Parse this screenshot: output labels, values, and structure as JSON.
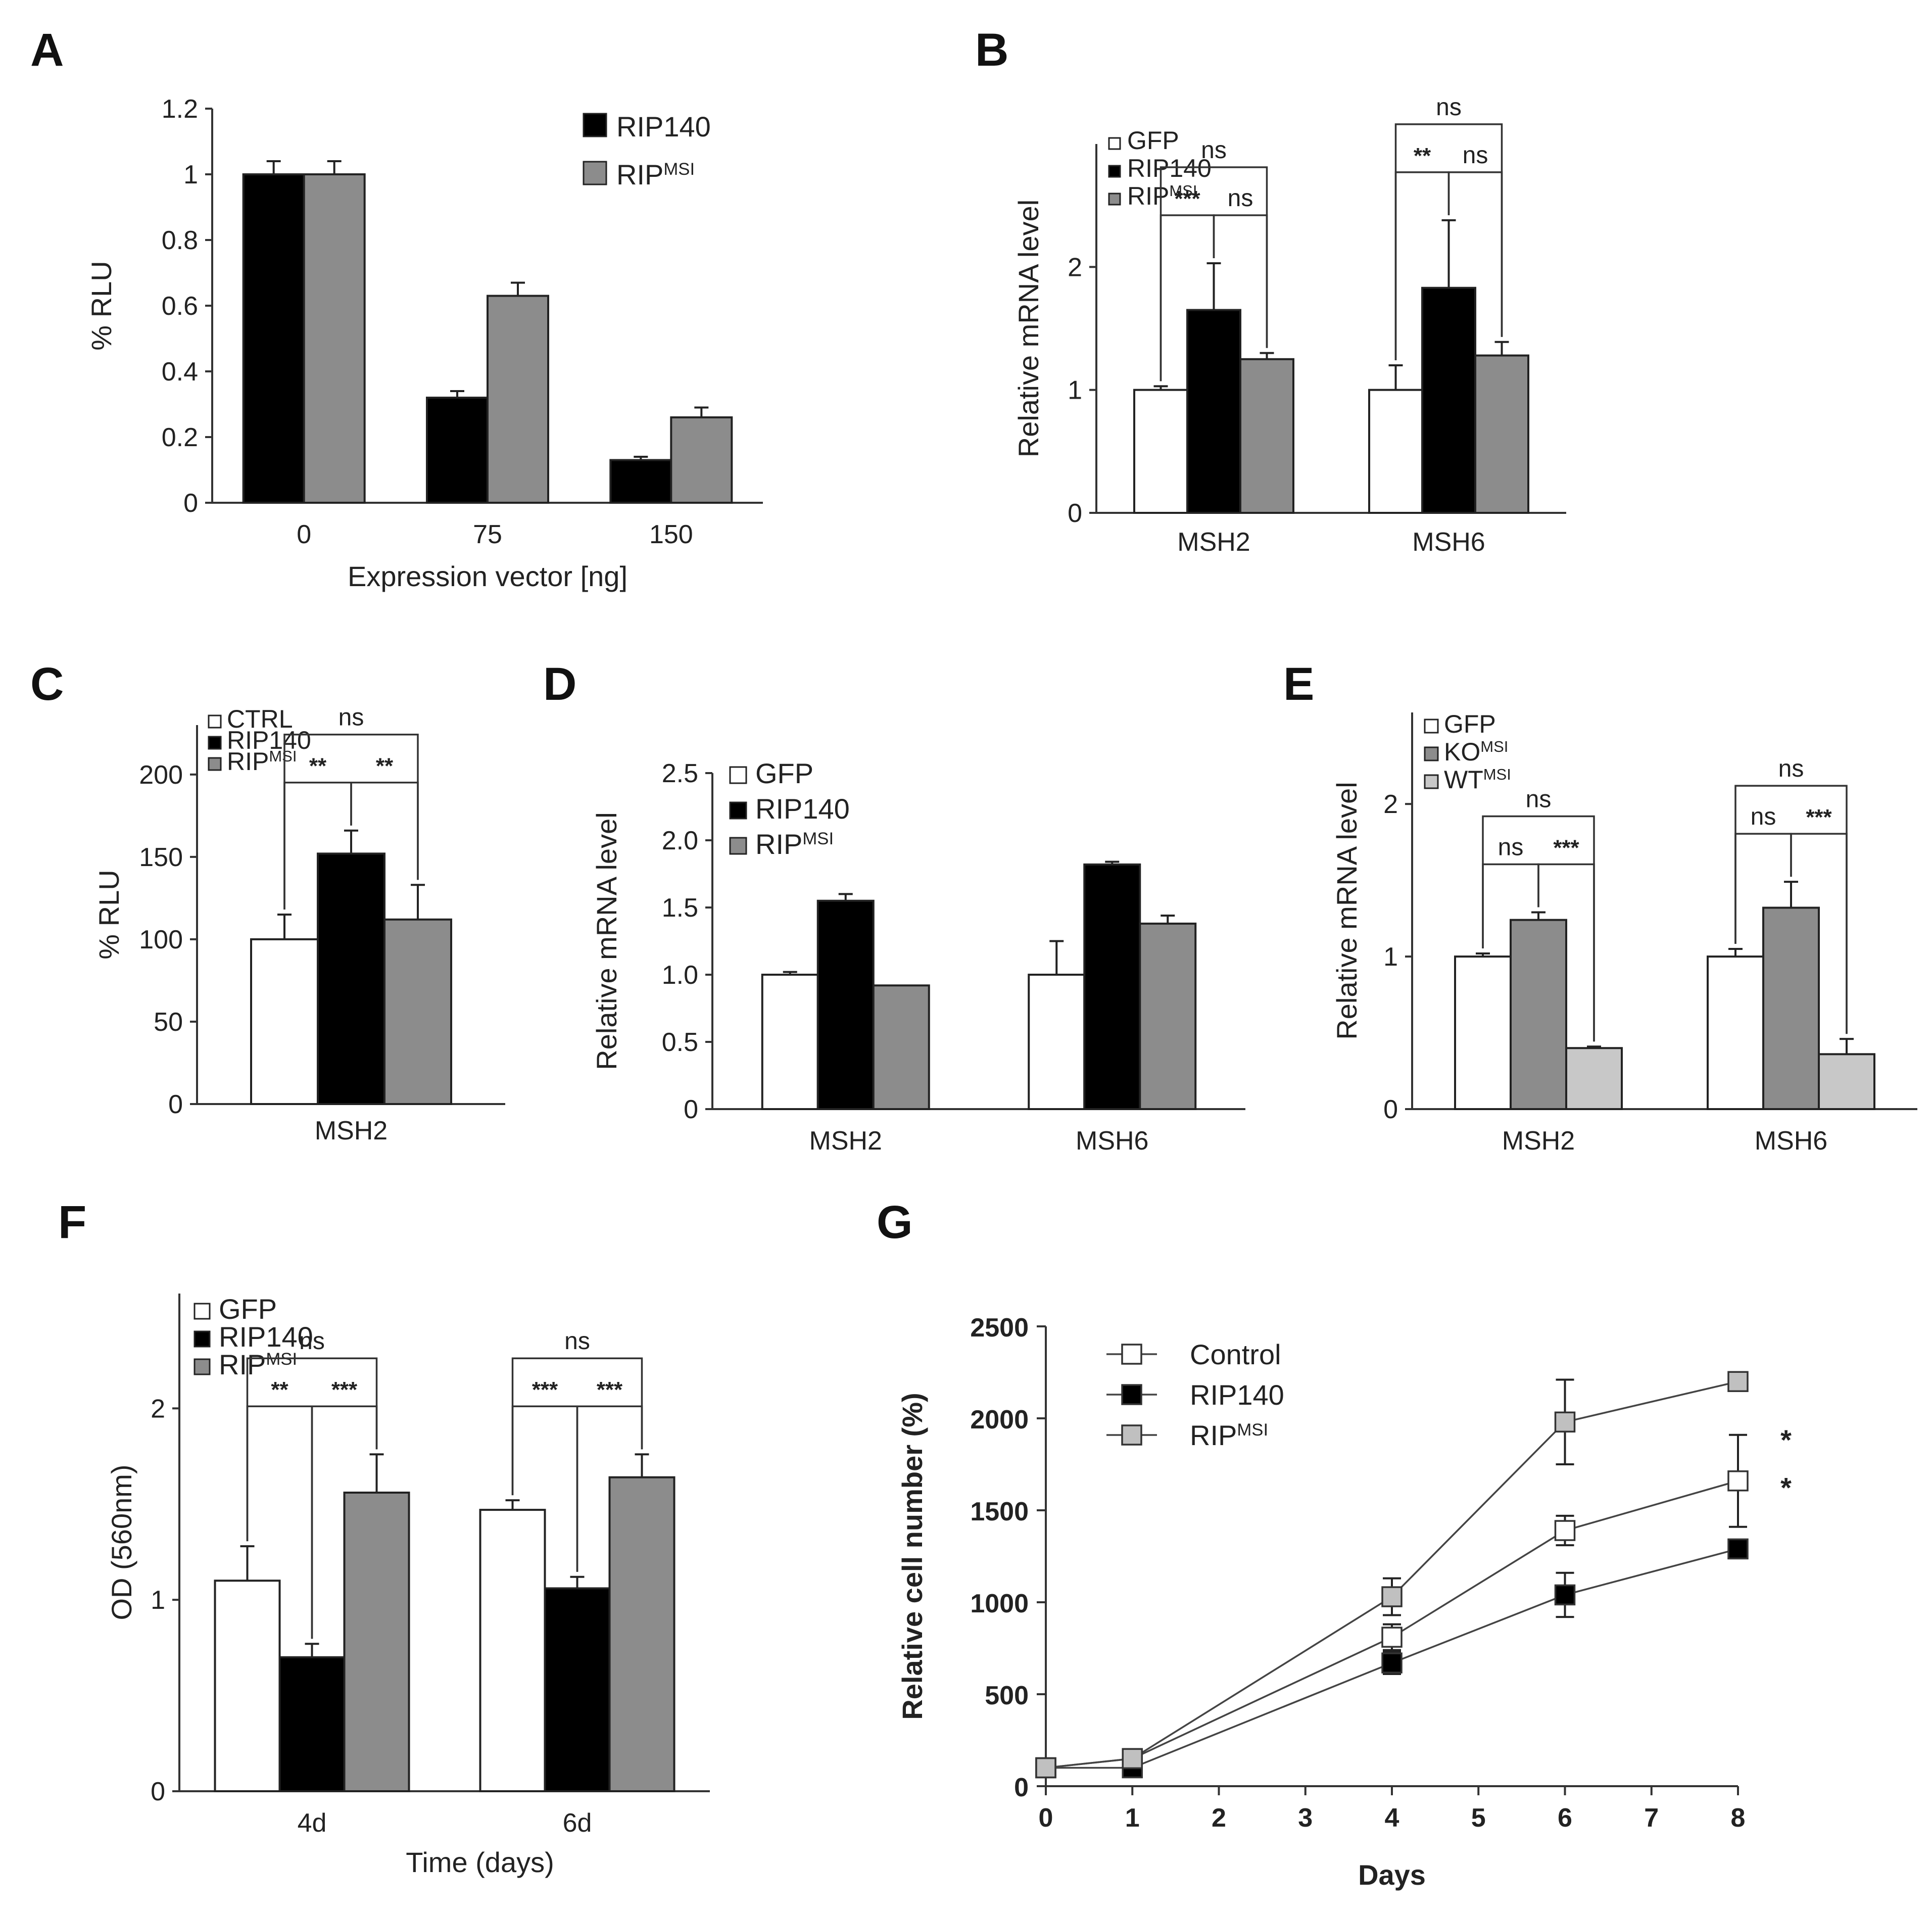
{
  "chart_data": [
    {
      "panel": "A",
      "type": "bar",
      "xlabel": "Expression vector  [ng]",
      "ylabel": "% RLU",
      "ylim": [
        0,
        1.2
      ],
      "yticks": [
        0,
        0.2,
        0.4,
        0.6,
        0.8,
        1,
        1.2
      ],
      "categories": [
        "0",
        "75",
        "150"
      ],
      "series": [
        {
          "name": "RIP140",
          "sup": "",
          "color": "#000000",
          "values": [
            1.0,
            0.32,
            0.13
          ],
          "errors": [
            0.04,
            0.02,
            0.01
          ]
        },
        {
          "name": "RIP",
          "sup": "MSI",
          "color": "#8c8c8c",
          "values": [
            1.0,
            0.63,
            0.26
          ],
          "errors": [
            0.04,
            0.04,
            0.03
          ]
        }
      ],
      "significance": []
    },
    {
      "panel": "B",
      "type": "bar",
      "xlabel": "",
      "ylabel": "Relative mRNA level",
      "ylim": [
        0,
        3.0
      ],
      "yticks": [
        0,
        1,
        2
      ],
      "categories": [
        "MSH2",
        "MSH6"
      ],
      "series": [
        {
          "name": "GFP",
          "sup": "",
          "color": "#ffffff",
          "values": [
            1.0,
            1.0
          ],
          "errors": [
            0.03,
            0.2
          ]
        },
        {
          "name": "RIP140",
          "sup": "",
          "color": "#000000",
          "values": [
            1.65,
            1.83
          ],
          "errors": [
            0.38,
            0.55
          ]
        },
        {
          "name": "RIP",
          "sup": "MSI",
          "color": "#8c8c8c",
          "values": [
            1.25,
            1.28
          ],
          "errors": [
            0.05,
            0.11
          ]
        }
      ],
      "significance": [
        {
          "group": 0,
          "from": 0,
          "to": 1,
          "label": "***"
        },
        {
          "group": 0,
          "from": 1,
          "to": 2,
          "label": "ns"
        },
        {
          "group": 0,
          "from": 0,
          "to": 2,
          "label": "ns"
        },
        {
          "group": 1,
          "from": 0,
          "to": 1,
          "label": "**"
        },
        {
          "group": 1,
          "from": 1,
          "to": 2,
          "label": "ns"
        },
        {
          "group": 1,
          "from": 0,
          "to": 2,
          "label": "ns"
        }
      ]
    },
    {
      "panel": "C",
      "type": "bar",
      "xlabel": "",
      "ylabel": "% RLU",
      "ylim": [
        0,
        230
      ],
      "yticks": [
        0,
        50,
        100,
        150,
        200
      ],
      "categories": [
        "MSH2"
      ],
      "series": [
        {
          "name": "CTRL",
          "sup": "",
          "color": "#ffffff",
          "values": [
            100
          ],
          "errors": [
            15
          ]
        },
        {
          "name": "RIP140",
          "sup": "",
          "color": "#000000",
          "values": [
            152
          ],
          "errors": [
            14
          ]
        },
        {
          "name": "RIP",
          "sup": "MSI",
          "color": "#8c8c8c",
          "values": [
            112
          ],
          "errors": [
            21
          ]
        }
      ],
      "significance": [
        {
          "group": 0,
          "from": 0,
          "to": 1,
          "label": "**"
        },
        {
          "group": 0,
          "from": 1,
          "to": 2,
          "label": "**"
        },
        {
          "group": 0,
          "from": 0,
          "to": 2,
          "label": "ns"
        }
      ]
    },
    {
      "panel": "D",
      "type": "bar",
      "xlabel": "",
      "ylabel": "Relative mRNA level",
      "ylim": [
        0,
        2.5
      ],
      "yticks": [
        "0",
        "0.5",
        "1.0",
        "1.5",
        "2.0",
        "2.5"
      ],
      "categories": [
        "MSH2",
        "MSH6"
      ],
      "series": [
        {
          "name": "GFP",
          "sup": "",
          "color": "#ffffff",
          "values": [
            1.0,
            1.0
          ],
          "errors": [
            0.02,
            0.25
          ]
        },
        {
          "name": "RIP140",
          "sup": "",
          "color": "#000000",
          "values": [
            1.55,
            1.82
          ],
          "errors": [
            0.05,
            0.02
          ]
        },
        {
          "name": "RIP",
          "sup": "MSI",
          "color": "#8c8c8c",
          "values": [
            0.92,
            1.38
          ],
          "errors": [
            0.0,
            0.06
          ]
        }
      ],
      "significance": []
    },
    {
      "panel": "E",
      "type": "bar",
      "xlabel": "",
      "ylabel": "Relative mRNA level",
      "ylim": [
        0,
        2.6
      ],
      "yticks": [
        0,
        1,
        2
      ],
      "categories": [
        "MSH2",
        "MSH6"
      ],
      "series": [
        {
          "name": "GFP",
          "sup": "",
          "color": "#ffffff",
          "values": [
            1.0,
            1.0
          ],
          "errors": [
            0.02,
            0.05
          ]
        },
        {
          "name": "KO",
          "sup": "MSI",
          "color": "#8c8c8c",
          "values": [
            1.24,
            1.32
          ],
          "errors": [
            0.05,
            0.17
          ]
        },
        {
          "name": "WT",
          "sup": "MSI",
          "color": "#c8c8c8",
          "values": [
            0.4,
            0.36
          ],
          "errors": [
            0.01,
            0.1
          ]
        }
      ],
      "significance": [
        {
          "group": 0,
          "from": 0,
          "to": 1,
          "label": "ns"
        },
        {
          "group": 0,
          "from": 1,
          "to": 2,
          "label": "***"
        },
        {
          "group": 0,
          "from": 0,
          "to": 2,
          "label": "ns"
        },
        {
          "group": 1,
          "from": 0,
          "to": 1,
          "label": "ns"
        },
        {
          "group": 1,
          "from": 1,
          "to": 2,
          "label": "***"
        },
        {
          "group": 1,
          "from": 0,
          "to": 2,
          "label": "ns"
        }
      ]
    },
    {
      "panel": "F",
      "type": "bar",
      "xlabel": "Time  (days)",
      "ylabel": "OD (560nm)",
      "ylim": [
        0,
        2.6
      ],
      "yticks": [
        0,
        1,
        2
      ],
      "categories": [
        "4d",
        "6d"
      ],
      "series": [
        {
          "name": "GFP",
          "sup": "",
          "color": "#ffffff",
          "values": [
            1.1,
            1.47
          ],
          "errors": [
            0.18,
            0.05
          ]
        },
        {
          "name": "RIP140",
          "sup": "",
          "color": "#000000",
          "values": [
            0.7,
            1.06
          ],
          "errors": [
            0.07,
            0.06
          ]
        },
        {
          "name": "RIP",
          "sup": "MSI",
          "color": "#8c8c8c",
          "values": [
            1.56,
            1.64
          ],
          "errors": [
            0.2,
            0.12
          ]
        }
      ],
      "significance": [
        {
          "group": 0,
          "from": 0,
          "to": 1,
          "label": "**"
        },
        {
          "group": 0,
          "from": 1,
          "to": 2,
          "label": "***"
        },
        {
          "group": 0,
          "from": 0,
          "to": 2,
          "label": "ns"
        },
        {
          "group": 1,
          "from": 0,
          "to": 1,
          "label": "***"
        },
        {
          "group": 1,
          "from": 1,
          "to": 2,
          "label": "***"
        },
        {
          "group": 1,
          "from": 0,
          "to": 2,
          "label": "ns"
        }
      ]
    },
    {
      "panel": "G",
      "type": "line",
      "xlabel": "Days",
      "ylabel": "Relative cell number (%)",
      "xlim": [
        0,
        8
      ],
      "ylim": [
        0,
        2500
      ],
      "xticks": [
        0,
        1,
        2,
        3,
        4,
        5,
        6,
        7,
        8
      ],
      "yticks": [
        0,
        500,
        1000,
        1500,
        2000,
        2500
      ],
      "x": [
        0,
        1,
        4,
        6,
        8
      ],
      "series": [
        {
          "name": "Control",
          "sup": "",
          "color": "#ffffff",
          "values": [
            100,
            150,
            810,
            1390,
            1660
          ],
          "errors": [
            0,
            0,
            70,
            80,
            250
          ]
        },
        {
          "name": "RIP140",
          "sup": "",
          "color": "#000000",
          "values": [
            100,
            100,
            670,
            1040,
            1290
          ],
          "errors": [
            0,
            0,
            60,
            120,
            20
          ]
        },
        {
          "name": "RIP",
          "sup": "MSI",
          "color": "#c0c0c0",
          "values": [
            100,
            150,
            1030,
            1980,
            2200
          ],
          "errors": [
            0,
            0,
            100,
            230,
            40
          ]
        }
      ],
      "annotations": [
        "*",
        "*"
      ]
    }
  ]
}
